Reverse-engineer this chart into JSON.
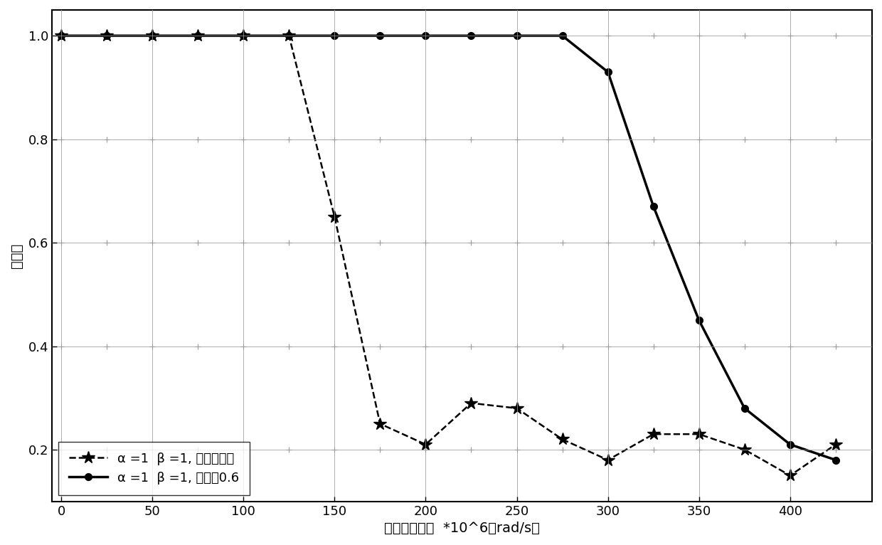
{
  "line1_label": "α =1  β =1, 无动量因子",
  "line2_label": "α =1  β =1, 学习率0.6",
  "xlabel": "随机旋转速率  *10^6（rad/s）",
  "ylabel": "准确率",
  "line1_x": [
    0,
    25,
    50,
    75,
    100,
    125,
    150,
    175,
    200,
    225,
    250,
    275,
    300,
    325,
    350,
    375,
    400,
    425
  ],
  "line1_y": [
    1.0,
    1.0,
    1.0,
    1.0,
    1.0,
    1.0,
    0.65,
    0.25,
    0.21,
    0.29,
    0.28,
    0.22,
    0.18,
    0.23,
    0.23,
    0.2,
    0.15,
    0.21
  ],
  "line2_x": [
    0,
    25,
    50,
    75,
    100,
    125,
    150,
    175,
    200,
    225,
    250,
    275,
    300,
    325,
    350,
    375,
    400,
    425
  ],
  "line2_y": [
    1.0,
    1.0,
    1.0,
    1.0,
    1.0,
    1.0,
    1.0,
    1.0,
    1.0,
    1.0,
    1.0,
    1.0,
    0.93,
    0.67,
    0.45,
    0.28,
    0.21,
    0.18
  ],
  "ylim": [
    0.1,
    1.05
  ],
  "xlim": [
    -5,
    445
  ],
  "xticks": [
    0,
    50,
    100,
    150,
    200,
    250,
    300,
    350,
    400
  ],
  "yticks": [
    0.2,
    0.4,
    0.6,
    0.8,
    1.0
  ],
  "grid_color": "#999999",
  "line_color": "#000000",
  "bg_color": "#ffffff"
}
